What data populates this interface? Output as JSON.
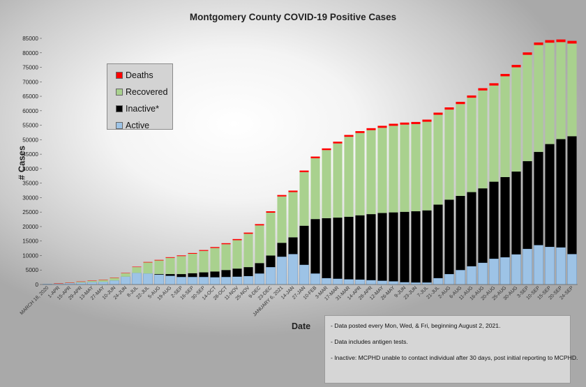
{
  "chart_data": {
    "type": "bar",
    "stacked": true,
    "title": "Montgomery County COVID-19 Positive Cases",
    "xlabel": "Date",
    "ylabel": "# Cases",
    "ylim": [
      0,
      85000
    ],
    "yticks": [
      0,
      5000,
      10000,
      15000,
      20000,
      25000,
      30000,
      35000,
      40000,
      45000,
      50000,
      55000,
      60000,
      65000,
      70000,
      75000,
      80000,
      85000
    ],
    "grid": false,
    "legend_position": "upper-left",
    "categories": [
      "MARCH 18, 2020",
      "1-APR",
      "15-APR",
      "29-APR",
      "13-MAY",
      "27-MAY",
      "10-JUN",
      "24-JUN",
      "8-JUL",
      "22-JUL",
      "5-AUG",
      "19-AUG",
      "2-SEP",
      "16-SEP",
      "30-SEP",
      "14-OCT",
      "28-OCT",
      "11-NOV",
      "25-NOV",
      "9-DEC",
      "23-DEC",
      "JANUARY 6, 2021",
      "14-JAN",
      "27-JAN",
      "10-FEB",
      "3-MAR",
      "17-MAR",
      "31-MAR",
      "14-APR",
      "28-APR",
      "12-MAY",
      "26-MAY",
      "9-JUN",
      "23-JUN",
      "7-JUL",
      "21-JUL",
      "2-AUG",
      "6-AUG",
      "11-AUG",
      "16-AUG",
      "20-AUG",
      "25-AUG",
      "30-AUG",
      "3-SEP",
      "10-SEP",
      "15-SEP",
      "20-SEP",
      "24-SEP"
    ],
    "series": [
      {
        "name": "Active",
        "color": "#9dc3e6",
        "values": [
          150,
          350,
          500,
          650,
          800,
          900,
          1400,
          2700,
          4000,
          3800,
          3400,
          3000,
          2600,
          2600,
          2600,
          2500,
          2600,
          2700,
          2900,
          3800,
          6000,
          9600,
          10500,
          6800,
          3800,
          2200,
          2000,
          1800,
          1700,
          1500,
          1300,
          1100,
          800,
          700,
          700,
          2200,
          3600,
          5000,
          6300,
          7500,
          8900,
          9400,
          10400,
          12300,
          13600,
          13000,
          12800,
          10500
        ]
      },
      {
        "name": "Inactive*",
        "color": "#000000",
        "values": [
          0,
          0,
          0,
          0,
          0,
          0,
          0,
          0,
          0,
          0,
          200,
          600,
          1000,
          1300,
          1600,
          2000,
          2400,
          2800,
          3100,
          3600,
          4000,
          4800,
          5800,
          13500,
          18800,
          20700,
          21100,
          21600,
          22200,
          22800,
          23400,
          23800,
          24300,
          24600,
          24900,
          25400,
          25700,
          25600,
          25600,
          25700,
          26600,
          27700,
          28600,
          30300,
          32200,
          35500,
          37400,
          40700
        ]
      },
      {
        "name": "Recovered",
        "color": "#a9d18e",
        "values": [
          0,
          50,
          200,
          350,
          500,
          700,
          900,
          1200,
          2000,
          3800,
          4700,
          5600,
          6200,
          6700,
          7400,
          8100,
          8900,
          9800,
          11500,
          13000,
          14800,
          16000,
          15600,
          18500,
          21000,
          23500,
          25600,
          27600,
          28400,
          29000,
          29400,
          29900,
          30100,
          30100,
          30600,
          31000,
          31100,
          31700,
          32600,
          33800,
          33200,
          34800,
          36000,
          36700,
          36900,
          35000,
          33500,
          32000
        ]
      },
      {
        "name": "Deaths",
        "color": "#ff0000",
        "values": [
          0,
          10,
          20,
          40,
          60,
          80,
          100,
          120,
          150,
          180,
          200,
          230,
          250,
          270,
          300,
          330,
          360,
          390,
          420,
          450,
          480,
          500,
          520,
          550,
          580,
          600,
          620,
          640,
          660,
          680,
          700,
          710,
          720,
          730,
          740,
          750,
          760,
          770,
          780,
          790,
          800,
          810,
          830,
          850,
          870,
          890,
          910,
          930
        ]
      }
    ]
  },
  "notes": [
    "- Data posted every Mon, Wed, & Fri, beginning August 2, 2021.",
    "- Data includes antigen tests.",
    "- Inactive: MCPHD unable to contact individual after 30 days, post initial reporting to MCPHD."
  ]
}
